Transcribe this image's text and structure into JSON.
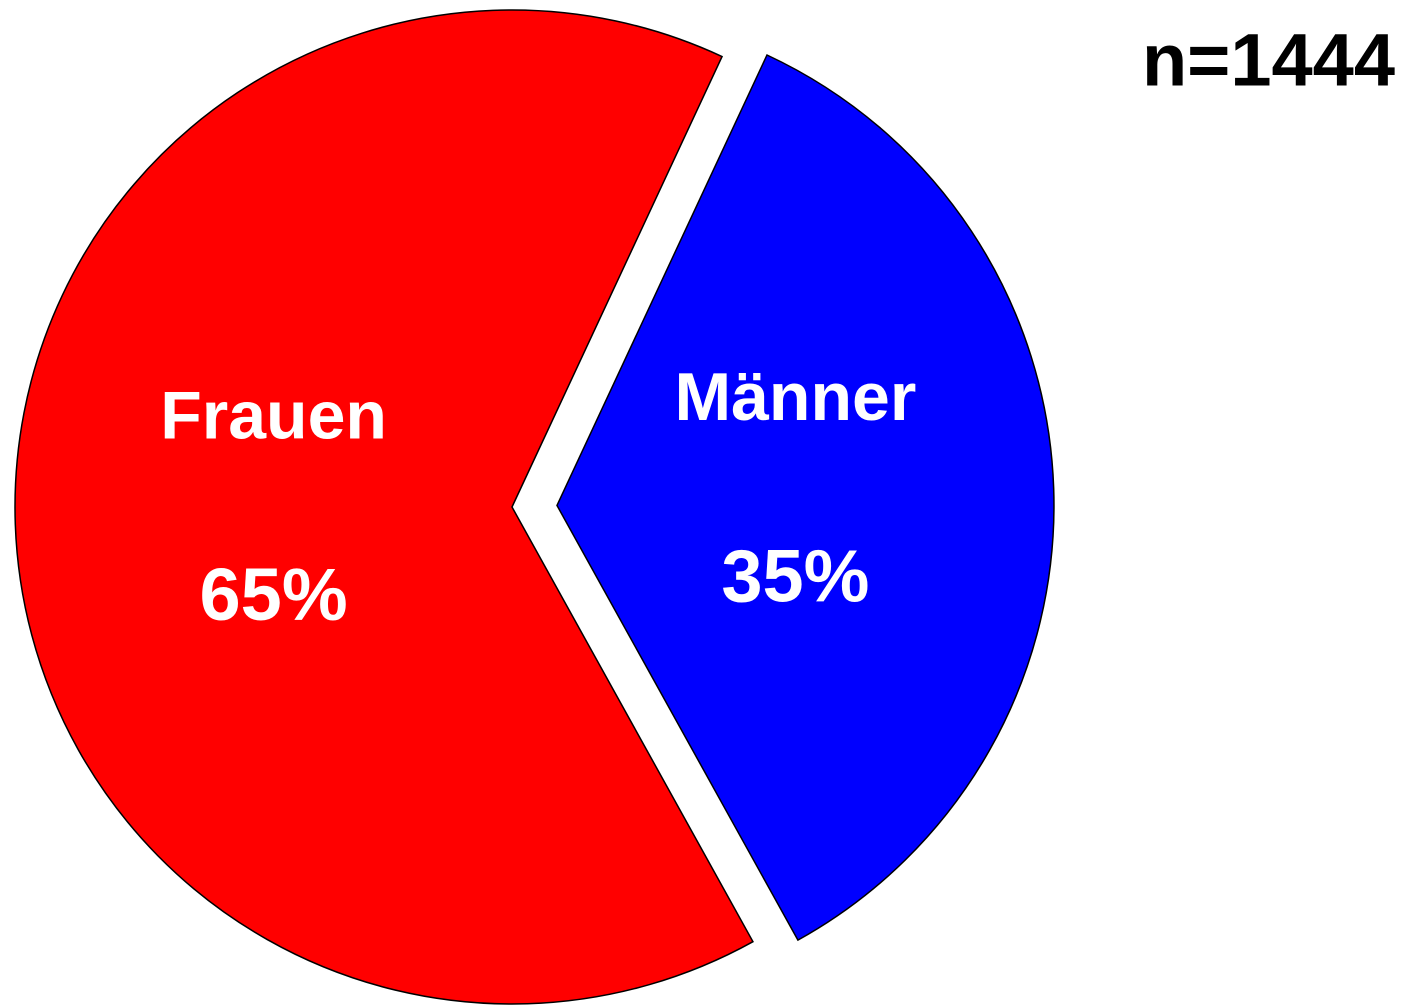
{
  "chart_data": {
    "type": "pie",
    "categories": [
      "Frauen",
      "Männer"
    ],
    "values": [
      65,
      35
    ],
    "value_labels": [
      "65%",
      "35%"
    ],
    "colors": [
      "#ff0000",
      "#0000ff"
    ],
    "annotation": "n=1444"
  }
}
